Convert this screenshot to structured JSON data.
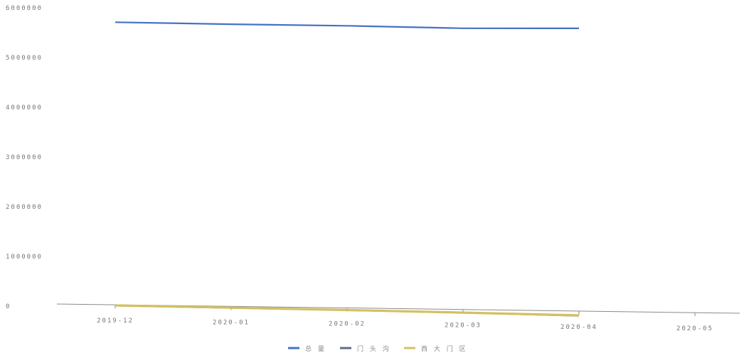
{
  "chart_data": {
    "type": "line",
    "categories": [
      "2019-12",
      "2020-01",
      "2020-02",
      "2020-03",
      "2020-04",
      "2020-05"
    ],
    "y_ticks": [
      "0",
      "1000000",
      "2000000",
      "3000000",
      "4000000",
      "5000000",
      "6000000"
    ],
    "ylim": [
      0,
      6000000
    ],
    "grid": false,
    "legend_position": "bottom",
    "series": [
      {
        "name": "总 量",
        "color": "#4472c4",
        "values": [
          5850000,
          5810000,
          5780000,
          5730000,
          5730000,
          null
        ]
      },
      {
        "name": "门 头 沟",
        "color": "#5a6f88",
        "values": [
          40000,
          25000,
          10000,
          -10000,
          -40000,
          null
        ]
      },
      {
        "name": "西 大 门 区",
        "color": "#d4c060",
        "values": [
          45000,
          30000,
          15000,
          -5000,
          -30000,
          null
        ]
      }
    ]
  }
}
